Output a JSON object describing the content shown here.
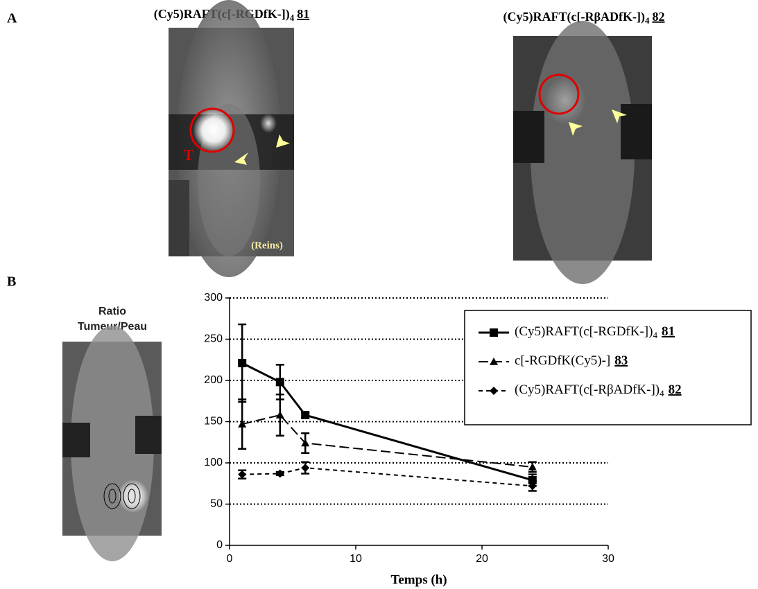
{
  "panel_a": {
    "label": "A",
    "images": [
      {
        "title": {
          "name": "(Cy5)RAFT(c[-RGDfK-])",
          "subscript": "4",
          "compound": "81"
        },
        "annotations": [
          "T",
          "(Reins)"
        ]
      },
      {
        "title": {
          "name": "(Cy5)RAFT(c[-RβADfK-])",
          "subscript": "4",
          "compound": "82"
        }
      }
    ]
  },
  "panel_b": {
    "label": "B",
    "image_caption": [
      "Ratio",
      "Tumeur/Peau"
    ]
  },
  "chart_data": {
    "type": "line",
    "x_label": "Temps (h)",
    "x": [
      1,
      4,
      6,
      24
    ],
    "xlim": [
      0,
      30
    ],
    "xticks": [
      0,
      10,
      20,
      30
    ],
    "ylim": [
      0,
      300
    ],
    "yticks": [
      0,
      50,
      100,
      150,
      200,
      250,
      300
    ],
    "grid": true,
    "legend": "upper-right",
    "series": [
      {
        "name": "(Cy5)RAFT(c[-RGDfK-])",
        "subscript": "4",
        "compound": "81",
        "color": "#000000",
        "line_style": "solid",
        "marker": "square",
        "values": [
          221,
          198,
          158,
          79
        ],
        "errors": [
          47,
          21,
          3,
          7
        ]
      },
      {
        "name": "c[-RGDfK(Cy5)-]",
        "compound": "83",
        "color": "#000000",
        "line_style": "long-dash",
        "marker": "triangle",
        "values": [
          147,
          158,
          124,
          95
        ],
        "errors": [
          30,
          25,
          12,
          6
        ]
      },
      {
        "name": "(Cy5)RAFT(c[-RβADfK-])",
        "subscript": "4",
        "compound": "82",
        "color": "#000000",
        "line_style": "dash",
        "marker": "diamond",
        "values": [
          86,
          87,
          94,
          72
        ],
        "errors": [
          5,
          2,
          7,
          6
        ]
      }
    ]
  }
}
